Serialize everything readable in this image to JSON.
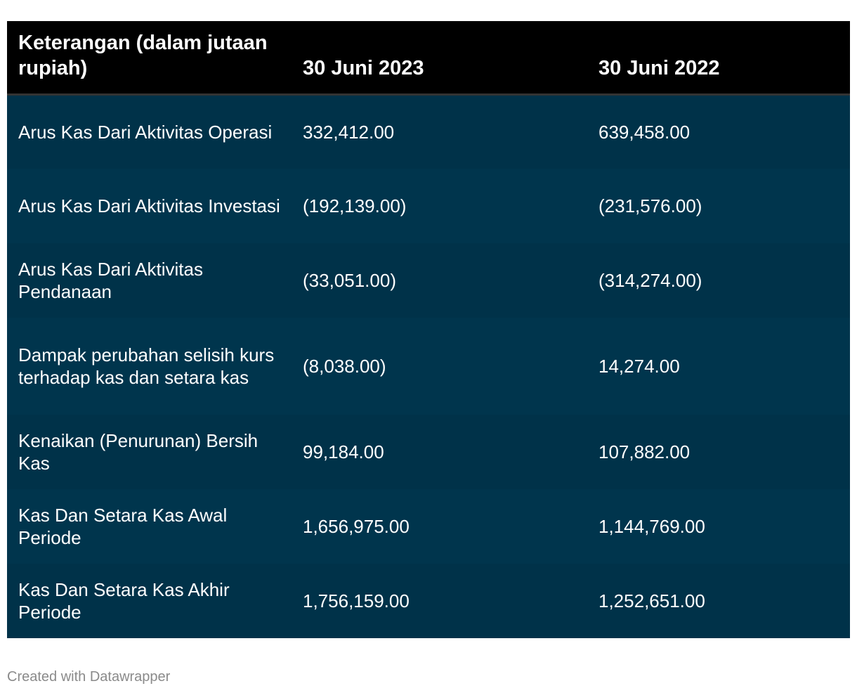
{
  "chart_data": {
    "type": "table",
    "columns": [
      "Keterangan (dalam jutaan rupiah)",
      "30 Juni 2023",
      "30 Juni 2022"
    ],
    "rows": [
      {
        "label": "Arus Kas Dari Aktivitas Operasi",
        "v2023": "332,412.00",
        "v2022": "639,458.00"
      },
      {
        "label": "Arus Kas Dari Aktivitas Investasi",
        "v2023": "(192,139.00)",
        "v2022": "(231,576.00)"
      },
      {
        "label": "Arus Kas Dari Aktivitas Pendanaan",
        "v2023": "(33,051.00)",
        "v2022": "(314,274.00)"
      },
      {
        "label": "Dampak perubahan selisih kurs terhadap kas dan setara kas",
        "v2023": "(8,038.00)",
        "v2022": "14,274.00"
      },
      {
        "label": "Kenaikan (Penurunan) Bersih Kas",
        "v2023": "99,184.00",
        "v2022": "107,882.00"
      },
      {
        "label": "Kas Dan Setara Kas Awal Periode",
        "v2023": "1,656,975.00",
        "v2022": "1,144,769.00"
      },
      {
        "label": "Kas Dan Setara Kas Akhir Periode",
        "v2023": "1,756,159.00",
        "v2022": "1,252,651.00"
      }
    ]
  },
  "footer": "Created with Datawrapper",
  "colors": {
    "header_bg": "#000000",
    "row_bg": "#00334a",
    "text": "#ffffff",
    "footer_text": "#8a8a8a"
  }
}
